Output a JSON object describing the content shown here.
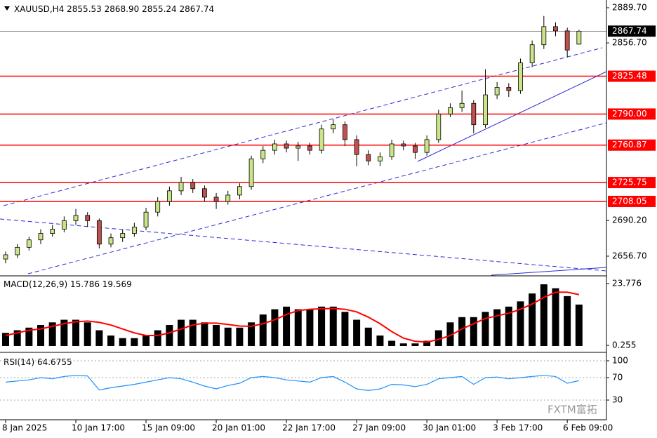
{
  "chart_data": [
    {
      "type": "candlestick",
      "symbol": "XAUUSD,H4",
      "header": [
        {
          "value": 2855.53,
          "label": "2855.53"
        },
        {
          "value": 2868.9,
          "label": "2868.90"
        },
        {
          "value": 2855.24,
          "label": "2855.24"
        },
        {
          "value": 2867.74,
          "label": "2867.74"
        }
      ],
      "categories": [
        "8 Jan 2025",
        null,
        null,
        null,
        null,
        null,
        "10 Jan 17:00",
        null,
        null,
        null,
        null,
        null,
        "15 Jan 09:00",
        null,
        null,
        null,
        null,
        null,
        "20 Jan 01:00",
        null,
        null,
        null,
        null,
        null,
        "22 Jan 17:00",
        null,
        null,
        null,
        null,
        null,
        "27 Jan 09:00",
        null,
        null,
        null,
        null,
        null,
        "30 Jan 01:00",
        null,
        null,
        null,
        null,
        null,
        "3 Feb 17:00",
        null,
        null,
        null,
        null,
        null,
        "6 Feb 09:00",
        null
      ],
      "open": [
        2654,
        2658,
        2665,
        2672,
        2678,
        2682,
        2690,
        2695,
        2690,
        2668,
        2674,
        2678,
        2684,
        2698,
        2708,
        2718,
        2726,
        2720,
        2712,
        2708,
        2714,
        2722,
        2748,
        2756,
        2762,
        2758,
        2760,
        2756,
        2776,
        2780,
        2766,
        2752,
        2746,
        2750,
        2762,
        2760,
        2754,
        2766,
        2790,
        2796,
        2800,
        2780,
        2808,
        2815,
        2812,
        2838,
        2855,
        2872,
        2868,
        2855.53
      ],
      "high": [
        2661,
        2668,
        2675,
        2682,
        2686,
        2694,
        2701,
        2698,
        2692,
        2678,
        2682,
        2688,
        2702,
        2712,
        2722,
        2731,
        2729,
        2723,
        2716,
        2718,
        2725,
        2751,
        2760,
        2766,
        2765,
        2764,
        2763,
        2780,
        2785,
        2783,
        2770,
        2756,
        2754,
        2766,
        2765,
        2763,
        2770,
        2794,
        2800,
        2812,
        2803,
        2832,
        2820,
        2819,
        2842,
        2859,
        2882,
        2876,
        2871,
        2868.9
      ],
      "low": [
        2650,
        2655,
        2662,
        2668,
        2675,
        2679,
        2686,
        2684,
        2664,
        2665,
        2670,
        2675,
        2681,
        2694,
        2704,
        2714,
        2716,
        2708,
        2701,
        2705,
        2710,
        2719,
        2744,
        2752,
        2754,
        2746,
        2752,
        2753,
        2772,
        2760,
        2741,
        2742,
        2741,
        2747,
        2756,
        2748,
        2751,
        2763,
        2787,
        2792,
        2772,
        2777,
        2804,
        2806,
        2809,
        2834,
        2851,
        2863,
        2843,
        2855.24
      ],
      "close": [
        2658,
        2665,
        2672,
        2678,
        2682,
        2690,
        2695,
        2690,
        2668,
        2674,
        2678,
        2684,
        2698,
        2708,
        2718,
        2726,
        2720,
        2712,
        2708,
        2714,
        2722,
        2748,
        2756,
        2762,
        2758,
        2760,
        2756,
        2776,
        2780,
        2766,
        2752,
        2746,
        2750,
        2762,
        2760,
        2754,
        2766,
        2790,
        2796,
        2800,
        2780,
        2808,
        2815,
        2812,
        2838,
        2855,
        2872,
        2868,
        2850,
        2867.74
      ],
      "up_color": "#c9e585",
      "down_color": "#c0504d",
      "ylim": [
        2638.9,
        2896.94
      ],
      "yticks": [
        {
          "value": 2889.7,
          "label": "2889.70"
        },
        {
          "value": 2856.7,
          "label": "2856.70"
        },
        {
          "value": 2690.2,
          "label": "2690.20"
        },
        {
          "value": 2656.7,
          "label": "2656.70"
        }
      ],
      "levels": [
        2825.48,
        {
          "value": 2790,
          "label": "2790.00"
        },
        2760.87,
        2725.75,
        2708.05
      ],
      "level_color": "#ff0000",
      "current_price": 2867.74
    },
    {
      "type": "macd",
      "title": "MACD(12,26,9)",
      "readout": [
        15.786,
        19.569
      ],
      "histogram": {
        "color": "#000000",
        "values": [
          5,
          6,
          7,
          8,
          9,
          10,
          10,
          9,
          6,
          4,
          3,
          3,
          4,
          6,
          8,
          10,
          10,
          9,
          8,
          7,
          7,
          9,
          12,
          14,
          15,
          14,
          14,
          15,
          15,
          13,
          10,
          7,
          4,
          2,
          1,
          1,
          2,
          6,
          9,
          11,
          11,
          13,
          14,
          15,
          17,
          20,
          23.5,
          22,
          19,
          15.786
        ]
      },
      "signal": {
        "color": "#ff0000",
        "values": [
          4,
          5,
          6,
          6.5,
          7.5,
          8.5,
          9.2,
          9.5,
          9,
          8,
          6.5,
          5,
          4,
          4,
          5,
          6.5,
          8,
          8.7,
          8.7,
          8.2,
          7.6,
          7.5,
          8.5,
          10,
          12,
          13.5,
          14,
          14.2,
          14.3,
          14,
          13,
          11,
          8.5,
          5.5,
          3,
          1.8,
          1.5,
          2.5,
          4,
          6.5,
          8.5,
          10.5,
          11.5,
          12.5,
          14,
          16,
          18.5,
          20.5,
          20.5,
          19.569
        ]
      },
      "ylim": [
        -1.88,
        26.18
      ],
      "yticks": [
        23.776,
        0.255
      ]
    },
    {
      "type": "line",
      "title": "RSI(14)",
      "readout": 64.6755,
      "color": "#1e90ff",
      "values": [
        62,
        64,
        66,
        70,
        68,
        72,
        74,
        73,
        48,
        52,
        55,
        58,
        62,
        66,
        70,
        68,
        62,
        55,
        50,
        56,
        60,
        70,
        72,
        70,
        66,
        64,
        62,
        70,
        72,
        62,
        50,
        47,
        50,
        58,
        57,
        54,
        58,
        68,
        70,
        72,
        58,
        70,
        71,
        68,
        70,
        72,
        74,
        72,
        60,
        64.6755
      ],
      "ylim": [
        -3.75,
        111.25
      ],
      "yticks": [
        100,
        70,
        30
      ],
      "grid": true
    }
  ],
  "watermark": "FXTM富拓"
}
